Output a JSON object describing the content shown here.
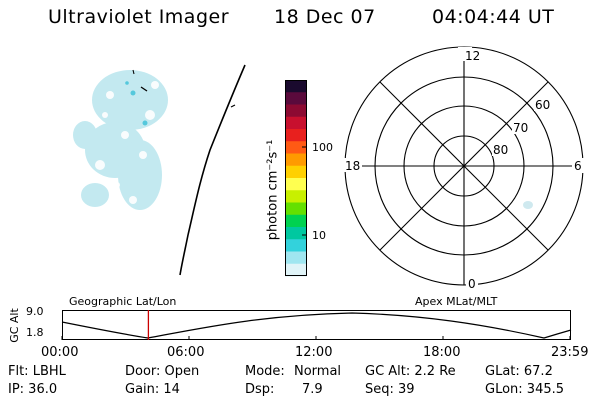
{
  "header": {
    "title": "Ultraviolet Imager",
    "date": "18 Dec 07",
    "time": "04:04:44 UT"
  },
  "colorbar": {
    "unit_label": "photon cm⁻²s⁻¹",
    "tick_100": "100",
    "tick_10": "10",
    "colors": [
      "#1a0a2e",
      "#5a0a3c",
      "#8c0a32",
      "#c8102e",
      "#e8201e",
      "#ff5a14",
      "#ff9a00",
      "#ffd000",
      "#ffff50",
      "#c8f000",
      "#64e000",
      "#00d250",
      "#00c8a0",
      "#33d2dc",
      "#a0e6f0",
      "#e0f4f8"
    ]
  },
  "polar_plot": {
    "mlt_labels": {
      "top": "12",
      "right": "6",
      "bottom": "0",
      "left": "18"
    },
    "lat_labels": [
      "60",
      "70",
      "80"
    ]
  },
  "timeline": {
    "ylabel": "GC Alt",
    "y_ticks": [
      "9.0",
      "1.8"
    ],
    "left_title": "Geographic Lat/Lon",
    "right_title": "Apex MLat/MLT",
    "x_ticks": [
      "00:00",
      "06:00",
      "12:00",
      "18:00",
      "23:59"
    ],
    "marker_fraction": 0.17,
    "marker_color": "#cc0000"
  },
  "info": {
    "filter": "Flt: LBHL",
    "door": "Door: Open",
    "mode_label": "Mode:",
    "mode_value": "Normal",
    "gcalt": "GC Alt: 2.2 Re",
    "glat": "GLat:  67.2",
    "ip": "IP: 36.0",
    "gain": "Gain: 14",
    "dsp_label": "Dsp:",
    "dsp_value": "7.9",
    "seq": "Seq: 39",
    "glon": "GLon: 345.5"
  }
}
